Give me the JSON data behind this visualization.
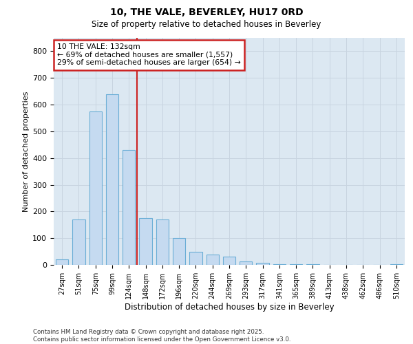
{
  "title1": "10, THE VALE, BEVERLEY, HU17 0RD",
  "title2": "Size of property relative to detached houses in Beverley",
  "xlabel": "Distribution of detached houses by size in Beverley",
  "ylabel": "Number of detached properties",
  "categories": [
    "27sqm",
    "51sqm",
    "75sqm",
    "99sqm",
    "124sqm",
    "148sqm",
    "172sqm",
    "196sqm",
    "220sqm",
    "244sqm",
    "269sqm",
    "293sqm",
    "317sqm",
    "341sqm",
    "365sqm",
    "389sqm",
    "413sqm",
    "438sqm",
    "462sqm",
    "486sqm",
    "510sqm"
  ],
  "values": [
    20,
    170,
    575,
    640,
    430,
    175,
    170,
    100,
    50,
    38,
    32,
    12,
    8,
    3,
    2,
    2,
    1,
    1,
    0,
    0,
    3
  ],
  "bar_color": "#c5daf0",
  "bar_edge_color": "#6baed6",
  "vline_index": 4,
  "annotation_text": "10 THE VALE: 132sqm\n← 69% of detached houses are smaller (1,557)\n29% of semi-detached houses are larger (654) →",
  "annotation_box_facecolor": "#ffffff",
  "annotation_box_edgecolor": "#cc2222",
  "vline_color": "#cc2222",
  "grid_color": "#c8d4e0",
  "bg_color": "#dce8f2",
  "footer_text": "Contains HM Land Registry data © Crown copyright and database right 2025.\nContains public sector information licensed under the Open Government Licence v3.0.",
  "ylim": [
    0,
    850
  ],
  "yticks": [
    0,
    100,
    200,
    300,
    400,
    500,
    600,
    700,
    800
  ]
}
